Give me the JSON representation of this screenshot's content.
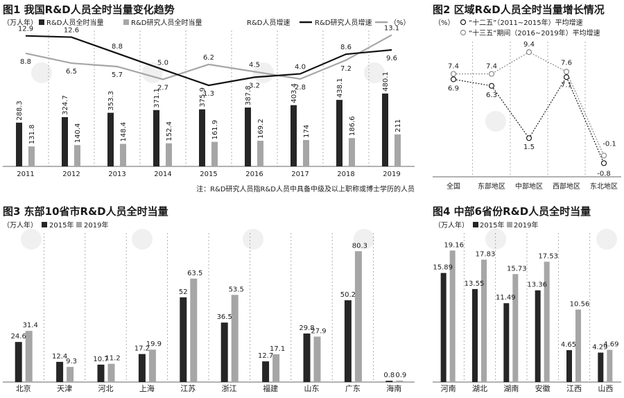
{
  "colors": {
    "dark": "#262626",
    "light": "#a6a6a6",
    "axis": "#666666",
    "grid": "#9a9a9a"
  },
  "chart_data": [
    {
      "id": "fig1",
      "type": "bar",
      "title": "图1 我国R&D人员全时当量变化趋势",
      "unit": "（万人年）",
      "unit_right": "（%）",
      "note": "注：R&D研究人员指R&D人员中具备中级及以上职称或博士学历的人员",
      "categories": [
        "2011",
        "2012",
        "2013",
        "2014",
        "2015",
        "2016",
        "2017",
        "2018",
        "2019"
      ],
      "series": [
        {
          "name": "R&D人员全时当量",
          "kind": "bar",
          "values": [
            288.3,
            324.7,
            353.3,
            371.1,
            375.9,
            387.8,
            403.4,
            438.1,
            480.1
          ]
        },
        {
          "name": "R&D研究人员全时当量",
          "kind": "bar",
          "values": [
            131.8,
            140.4,
            148.4,
            152.4,
            161.9,
            169.2,
            174,
            186.6,
            211
          ]
        },
        {
          "name": "R&D人员增速",
          "kind": "line",
          "values": [
            12.9,
            12.6,
            8.8,
            5.0,
            1.3,
            3.2,
            4.0,
            8.6,
            9.6
          ]
        },
        {
          "name": "R&D研究人员增速",
          "kind": "line",
          "values": [
            8.8,
            6.5,
            5.7,
            2.7,
            6.2,
            4.5,
            2.8,
            7.2,
            13.1
          ]
        }
      ],
      "labels": {
        "bar1": [
          "288.3",
          "324.7",
          "353.3",
          "371.1",
          "375.9",
          "387.8",
          "403.4",
          "438.1",
          "480.1"
        ],
        "bar2": [
          "131.8",
          "140.4",
          "148.4",
          "152.4",
          "161.9",
          "169.2",
          "174",
          "186.6",
          "211"
        ],
        "line1": [
          "12.9",
          "12.6",
          "8.8",
          "5.0",
          "1.3",
          "3.2",
          "4.0",
          "8.6",
          "9.6"
        ],
        "line2": [
          "8.8",
          "6.5",
          "5.7",
          "2.7",
          "6.2",
          "4.5",
          "2.8",
          "7.2",
          "13.1"
        ]
      }
    },
    {
      "id": "fig2",
      "type": "line",
      "title": "图2 区域R&D人员全时当量增长情况",
      "unit": "（%）",
      "categories": [
        "全国",
        "东部地区",
        "中部地区",
        "西部地区",
        "东北地区"
      ],
      "series": [
        {
          "name": "“十二五”（2011~2015年）平均增速",
          "values": [
            6.9,
            6.3,
            1.5,
            7.1,
            -0.8
          ],
          "labels": [
            "6.9",
            "6.3",
            "1.5",
            "7.1",
            "-0.8"
          ]
        },
        {
          "name": "“十三五”期间（2016~2019年）平均增速",
          "values": [
            7.4,
            7.4,
            9.4,
            7.6,
            -0.1
          ],
          "labels": [
            "7.4",
            "7.4",
            "9.4",
            "7.6",
            "-0.1"
          ]
        }
      ]
    },
    {
      "id": "fig3",
      "type": "bar",
      "title": "图3 东部10省市R&D人员全时当量",
      "unit": "（万人年）",
      "categories": [
        "北京",
        "天津",
        "河北",
        "上海",
        "江苏",
        "浙江",
        "福建",
        "山东",
        "广东",
        "海南"
      ],
      "series": [
        {
          "name": "2015年",
          "values": [
            24.6,
            12.4,
            10.7,
            17.2,
            52,
            36.5,
            12.7,
            29.8,
            50.2,
            0.8
          ],
          "labels": [
            "24.6",
            "12.4",
            "10.7",
            "17.2",
            "52",
            "36.5",
            "12.7",
            "29.8",
            "50.2",
            "0.8"
          ]
        },
        {
          "name": "2019年",
          "values": [
            31.4,
            9.3,
            11.2,
            19.9,
            63.5,
            53.5,
            17.1,
            27.9,
            80.3,
            0.9
          ],
          "labels": [
            "31.4",
            "9.3",
            "11.2",
            "19.9",
            "63.5",
            "53.5",
            "17.1",
            "27.9",
            "80.3",
            "0.9"
          ]
        }
      ]
    },
    {
      "id": "fig4",
      "type": "bar",
      "title": "图4 中部6省份R&D人员全时当量",
      "unit": "（万人年）",
      "categories": [
        "河南",
        "湖北",
        "湖南",
        "安徽",
        "江西",
        "山西"
      ],
      "series": [
        {
          "name": "2015年",
          "values": [
            15.89,
            13.55,
            11.49,
            13.36,
            4.65,
            4.29
          ],
          "labels": [
            "15.89",
            "13.55",
            "11.49",
            "13.36",
            "4.65",
            "4.29"
          ]
        },
        {
          "name": "2019年",
          "values": [
            19.16,
            17.83,
            15.73,
            17.53,
            10.56,
            4.69
          ],
          "labels": [
            "19.16",
            "17.83",
            "15.73",
            "17.53",
            "10.56",
            "4.69"
          ]
        }
      ]
    }
  ]
}
